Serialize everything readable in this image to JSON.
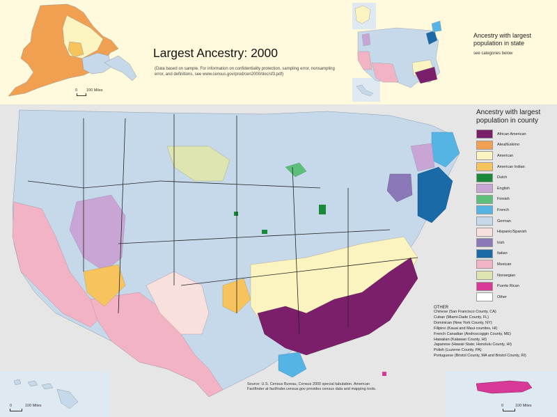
{
  "title": "Largest Ancestry: 2000",
  "note": "(Data based on sample. For information on confidentiality protection, sampling error, nonsampling error, and definitions, see www.census.gov/prod/cen2000/doc/sf3.pdf)",
  "state_panel": {
    "title": "Ancestry with largest population in state",
    "subtitle": "see categories below"
  },
  "legend": {
    "title": "Ancestry with largest population in county",
    "items": [
      {
        "label": "African American",
        "color": "#7b1f6a"
      },
      {
        "label": "Aleut/Eskimo",
        "color": "#f0a050"
      },
      {
        "label": "American",
        "color": "#fbf4c0"
      },
      {
        "label": "American Indian",
        "color": "#f7c35c"
      },
      {
        "label": "Dutch",
        "color": "#1a8a3a"
      },
      {
        "label": "English",
        "color": "#c9a5d6"
      },
      {
        "label": "Finnish",
        "color": "#5cbf7a"
      },
      {
        "label": "French",
        "color": "#56b4e4"
      },
      {
        "label": "German",
        "color": "#c5d9ea"
      },
      {
        "label": "Hispanic/Spanish",
        "color": "#f8e0dc"
      },
      {
        "label": "Irish",
        "color": "#8a78b9"
      },
      {
        "label": "Italian",
        "color": "#1b6aa8"
      },
      {
        "label": "Mexican",
        "color": "#f2b3c4"
      },
      {
        "label": "Norwegian",
        "color": "#dfe5b0"
      },
      {
        "label": "Puerto Rican",
        "color": "#d63996"
      },
      {
        "label": "Other",
        "color": "#ffffff"
      }
    ]
  },
  "other": {
    "heading": "OTHER",
    "items": [
      "Chinese (San Francisco County, CA)",
      "Cuban (Miami-Dade County, FL)",
      "Dominican (New York County, NY)",
      "Filipino (Kauai and Maui counties, HI)",
      "French Canadian (Androscoggin County, ME)",
      "Hawaiian (Kalawao County, HI)",
      "Japanese (Hawaii State; Honolulu County, HI)",
      "Polish (Luzerne County, PA)",
      "Portuguese (Bristol County, MA and Bristol County, RI)"
    ]
  },
  "source": "Source: U.S. Census Bureau, Census 2000 special tabulation. American Factfinder at factfinder.census.gov provides census data and mapping tools.",
  "scales": {
    "alaska": [
      "0",
      "100 Miles"
    ],
    "hawaii": [
      "0",
      "100 Miles"
    ],
    "puerto_rico": [
      "0",
      "100 Miles"
    ]
  }
}
